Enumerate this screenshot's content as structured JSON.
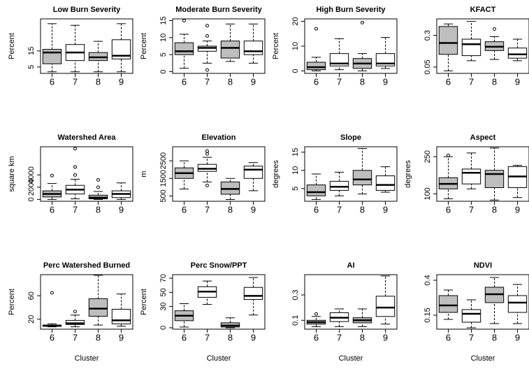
{
  "chart_data": [
    {
      "type": "box",
      "title": "Low Burn Severity",
      "ylabel": "Percent",
      "categories": [
        "6",
        "7",
        "8",
        "9"
      ],
      "colors": [
        "#bebebe",
        "#ffffff",
        "#bebebe",
        "#ffffff"
      ],
      "ylim": [
        1,
        35
      ],
      "yticks": [
        5,
        15
      ],
      "boxes": [
        {
          "whislo": 2,
          "q1": 7,
          "med": 14,
          "q3": 16,
          "whishi": 32,
          "fliers": []
        },
        {
          "whislo": 2,
          "q1": 9,
          "med": 14,
          "q3": 19,
          "whishi": 31,
          "fliers": []
        },
        {
          "whislo": 2,
          "q1": 9,
          "med": 11,
          "q3": 14,
          "whishi": 21,
          "fliers": []
        },
        {
          "whislo": 2,
          "q1": 10,
          "med": 12,
          "q3": 22,
          "whishi": 32,
          "fliers": []
        }
      ]
    },
    {
      "type": "box",
      "title": "Moderate Burn Severity",
      "ylabel": "Percent",
      "categories": [
        "6",
        "7",
        "8",
        "9"
      ],
      "colors": [
        "#bebebe",
        "#ffffff",
        "#bebebe",
        "#ffffff"
      ],
      "ylim": [
        -0.5,
        15.5
      ],
      "yticks": [
        0,
        5,
        10,
        15
      ],
      "boxes": [
        {
          "whislo": 1,
          "q1": 5,
          "med": 6,
          "q3": 8.5,
          "whishi": 11,
          "fliers": [
            15
          ]
        },
        {
          "whislo": 2.5,
          "q1": 6,
          "med": 7,
          "q3": 7.5,
          "whishi": 9,
          "fliers": [
            0.5,
            10.5,
            13.5
          ]
        },
        {
          "whislo": 3,
          "q1": 4,
          "med": 7,
          "q3": 9,
          "whishi": 14,
          "fliers": []
        },
        {
          "whislo": 2.5,
          "q1": 5,
          "med": 6,
          "q3": 9,
          "whishi": 14,
          "fliers": []
        }
      ]
    },
    {
      "type": "box",
      "title": "High Burn Severity",
      "ylabel": "Percent",
      "categories": [
        "6",
        "7",
        "8",
        "9"
      ],
      "colors": [
        "#bebebe",
        "#ffffff",
        "#bebebe",
        "#ffffff"
      ],
      "ylim": [
        -1,
        21
      ],
      "yticks": [
        0,
        10,
        20
      ],
      "boxes": [
        {
          "whislo": 0,
          "q1": 0.5,
          "med": 1.5,
          "q3": 3.5,
          "whishi": 5.5,
          "fliers": [
            17
          ]
        },
        {
          "whislo": 0.5,
          "q1": 2,
          "med": 3,
          "q3": 7,
          "whishi": 13,
          "fliers": []
        },
        {
          "whislo": 0,
          "q1": 1,
          "med": 3,
          "q3": 5,
          "whishi": 7,
          "fliers": [
            19.5
          ]
        },
        {
          "whislo": 1,
          "q1": 2,
          "med": 3,
          "q3": 7,
          "whishi": 13.5,
          "fliers": []
        }
      ]
    },
    {
      "type": "box",
      "title": "KFACT",
      "categories": [
        "6",
        "7",
        "8",
        "9"
      ],
      "colors": [
        "#bebebe",
        "#ffffff",
        "#bebebe",
        "#ffffff"
      ],
      "ylim": [
        0.0,
        0.43
      ],
      "yticks": [
        0.05,
        0.3
      ],
      "boxes": [
        {
          "whislo": 0.02,
          "q1": 0.15,
          "med": 0.24,
          "q3": 0.37,
          "whishi": 0.39,
          "fliers": []
        },
        {
          "whislo": 0.1,
          "q1": 0.14,
          "med": 0.23,
          "q3": 0.27,
          "whishi": 0.41,
          "fliers": []
        },
        {
          "whislo": 0.11,
          "q1": 0.18,
          "med": 0.21,
          "q3": 0.25,
          "whishi": 0.29,
          "fliers": [
            0.35
          ]
        },
        {
          "whislo": 0.1,
          "q1": 0.12,
          "med": 0.15,
          "q3": 0.2,
          "whishi": 0.27,
          "fliers": []
        }
      ]
    },
    {
      "type": "box",
      "title": "Watershed Area",
      "ylabel": "square km",
      "categories": [
        "6",
        "7",
        "8",
        "9"
      ],
      "colors": [
        "#bebebe",
        "#ffffff",
        "#bebebe",
        "#ffffff"
      ],
      "ylim": [
        -300,
        8600
      ],
      "yticks": [
        0,
        2000,
        4000
      ],
      "boxes": [
        {
          "whislo": 0,
          "q1": 400,
          "med": 900,
          "q3": 1400,
          "whishi": 2600,
          "fliers": [
            3900
          ]
        },
        {
          "whislo": 100,
          "q1": 900,
          "med": 1600,
          "q3": 2300,
          "whishi": 3300,
          "fliers": [
            4000,
            5300,
            8300
          ]
        },
        {
          "whislo": 0,
          "q1": 100,
          "med": 300,
          "q3": 700,
          "whishi": 1300,
          "fliers": [
            2000,
            3200
          ]
        },
        {
          "whislo": 0,
          "q1": 300,
          "med": 900,
          "q3": 1400,
          "whishi": 2700,
          "fliers": []
        }
      ]
    },
    {
      "type": "box",
      "title": "Elevation",
      "ylabel": "m",
      "categories": [
        "6",
        "7",
        "8",
        "9"
      ],
      "colors": [
        "#bebebe",
        "#ffffff",
        "#bebebe",
        "#ffffff"
      ],
      "ylim": [
        200,
        3300
      ],
      "yticks": [
        500,
        1500,
        2500
      ],
      "boxes": [
        {
          "whislo": 900,
          "q1": 1500,
          "med": 1800,
          "q3": 2100,
          "whishi": 2500,
          "fliers": []
        },
        {
          "whislo": 1300,
          "q1": 1900,
          "med": 2050,
          "q3": 2300,
          "whishi": 2700,
          "fliers": [
            1100,
            2900,
            3050
          ]
        },
        {
          "whislo": 300,
          "q1": 600,
          "med": 900,
          "q3": 1300,
          "whishi": 1500,
          "fliers": []
        },
        {
          "whislo": 800,
          "q1": 1500,
          "med": 2000,
          "q3": 2200,
          "whishi": 2400,
          "fliers": []
        }
      ]
    },
    {
      "type": "box",
      "title": "Slope",
      "ylabel": "degrees",
      "categories": [
        "6",
        "7",
        "8",
        "9"
      ],
      "colors": [
        "#bebebe",
        "#ffffff",
        "#bebebe",
        "#ffffff"
      ],
      "ylim": [
        1.5,
        16.5
      ],
      "yticks": [
        5,
        10,
        15
      ],
      "boxes": [
        {
          "whislo": 2,
          "q1": 3,
          "med": 4,
          "q3": 6,
          "whishi": 9,
          "fliers": []
        },
        {
          "whislo": 3,
          "q1": 4.5,
          "med": 5.5,
          "q3": 7,
          "whishi": 9.5,
          "fliers": []
        },
        {
          "whislo": 3.5,
          "q1": 6,
          "med": 7.5,
          "q3": 10,
          "whishi": 16,
          "fliers": []
        },
        {
          "whislo": 4,
          "q1": 4.5,
          "med": 6,
          "q3": 8.5,
          "whishi": 11,
          "fliers": []
        }
      ]
    },
    {
      "type": "box",
      "title": "Aspect",
      "ylabel": "degrees",
      "categories": [
        "6",
        "7",
        "8",
        "9"
      ],
      "colors": [
        "#bebebe",
        "#ffffff",
        "#bebebe",
        "#ffffff"
      ],
      "ylim": [
        70,
        290
      ],
      "yticks": [
        100,
        250
      ],
      "boxes": [
        {
          "whislo": 80,
          "q1": 120,
          "med": 140,
          "q3": 165,
          "whishi": 250,
          "fliers": [
            255
          ]
        },
        {
          "whislo": 120,
          "q1": 140,
          "med": 185,
          "q3": 200,
          "whishi": 265,
          "fliers": []
        },
        {
          "whislo": 75,
          "q1": 125,
          "med": 180,
          "q3": 195,
          "whishi": 285,
          "fliers": []
        },
        {
          "whislo": 85,
          "q1": 125,
          "med": 170,
          "q3": 210,
          "whishi": 215,
          "fliers": []
        }
      ]
    },
    {
      "type": "box",
      "title": "Perc Watershed Burned",
      "ylabel": "Percent",
      "xlabel": "Cluster",
      "categories": [
        "6",
        "7",
        "8",
        "9"
      ],
      "colors": [
        "#bebebe",
        "#ffffff",
        "#bebebe",
        "#ffffff"
      ],
      "ylim": [
        3,
        96
      ],
      "yticks": [
        20,
        60
      ],
      "boxes": [
        {
          "whislo": 7,
          "q1": 8,
          "med": 9,
          "q3": 10,
          "whishi": 12,
          "fliers": [
            65
          ]
        },
        {
          "whislo": 7,
          "q1": 11,
          "med": 13,
          "q3": 18,
          "whishi": 27,
          "fliers": [
            33
          ]
        },
        {
          "whislo": 10,
          "q1": 25,
          "med": 38,
          "q3": 55,
          "whishi": 95,
          "fliers": []
        },
        {
          "whislo": 8,
          "q1": 12,
          "med": 18,
          "q3": 37,
          "whishi": 63,
          "fliers": []
        }
      ]
    },
    {
      "type": "box",
      "title": "Perc Snow/PPT",
      "ylabel": "Percent",
      "xlabel": "Cluster",
      "categories": [
        "6",
        "7",
        "8",
        "9"
      ],
      "colors": [
        "#bebebe",
        "#ffffff",
        "#bebebe",
        "#ffffff"
      ],
      "ylim": [
        -2,
        75
      ],
      "yticks": [
        0,
        30,
        50,
        70
      ],
      "boxes": [
        {
          "whislo": 1,
          "q1": 10,
          "med": 17,
          "q3": 24,
          "whishi": 34,
          "fliers": []
        },
        {
          "whislo": 33,
          "q1": 43,
          "med": 51,
          "q3": 58,
          "whishi": 66,
          "fliers": []
        },
        {
          "whislo": 0,
          "q1": 1,
          "med": 3,
          "q3": 7,
          "whishi": 14,
          "fliers": []
        },
        {
          "whislo": 18,
          "q1": 40,
          "med": 45,
          "q3": 57,
          "whishi": 71,
          "fliers": []
        }
      ]
    },
    {
      "type": "box",
      "title": "AI",
      "xlabel": "Cluster",
      "categories": [
        "6",
        "7",
        "8",
        "9"
      ],
      "colors": [
        "#bebebe",
        "#ffffff",
        "#bebebe",
        "#ffffff"
      ],
      "ylim": [
        0.03,
        0.46
      ],
      "yticks": [
        0.1,
        0.3
      ],
      "boxes": [
        {
          "whislo": 0.05,
          "q1": 0.07,
          "med": 0.085,
          "q3": 0.1,
          "whishi": 0.13,
          "fliers": [
            0.15
          ]
        },
        {
          "whislo": 0.05,
          "q1": 0.09,
          "med": 0.12,
          "q3": 0.16,
          "whishi": 0.19,
          "fliers": []
        },
        {
          "whislo": 0.05,
          "q1": 0.08,
          "med": 0.1,
          "q3": 0.12,
          "whishi": 0.19,
          "fliers": []
        },
        {
          "whislo": 0.07,
          "q1": 0.13,
          "med": 0.2,
          "q3": 0.29,
          "whishi": 0.45,
          "fliers": []
        }
      ]
    },
    {
      "type": "box",
      "title": "NDVI",
      "xlabel": "Cluster",
      "categories": [
        "6",
        "7",
        "8",
        "9"
      ],
      "colors": [
        "#bebebe",
        "#ffffff",
        "#bebebe",
        "#ffffff"
      ],
      "ylim": [
        0.05,
        0.44
      ],
      "yticks": [
        0.15,
        0.4
      ],
      "boxes": [
        {
          "whislo": 0.12,
          "q1": 0.17,
          "med": 0.22,
          "q3": 0.29,
          "whishi": 0.33,
          "fliers": []
        },
        {
          "whislo": 0.06,
          "q1": 0.1,
          "med": 0.16,
          "q3": 0.19,
          "whishi": 0.26,
          "fliers": []
        },
        {
          "whislo": 0.09,
          "q1": 0.24,
          "med": 0.3,
          "q3": 0.35,
          "whishi": 0.42,
          "fliers": []
        },
        {
          "whislo": 0.09,
          "q1": 0.17,
          "med": 0.24,
          "q3": 0.29,
          "whishi": 0.37,
          "fliers": []
        }
      ]
    }
  ]
}
